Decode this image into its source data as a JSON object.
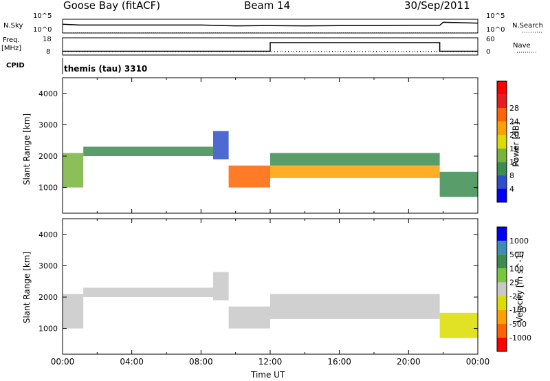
{
  "header": {
    "station": "Goose Bay (fitACF)",
    "beam": "Beam 14",
    "date": "30/Sep/2011"
  },
  "top_panels": {
    "nsky_label": "N.Sky",
    "nsearch_label": "N.Search",
    "noise_ticks": [
      "10^5",
      "10^0"
    ],
    "freq_label": "Freq.",
    "freq_unit": "[MHz]",
    "freq_ticks": [
      "18",
      "8"
    ],
    "nave_label": "Nave",
    "nave_ticks": [
      "60",
      "0"
    ],
    "cpid_label": "CPID",
    "cpid_value": "themis (tau) 3310"
  },
  "colors": {
    "power": [
      "#0000ff",
      "#2f4fc8",
      "#3c8c50",
      "#78b43c",
      "#dcdc00",
      "#ffa000",
      "#ff6400",
      "#e61e1e",
      "#ff0000"
    ],
    "velocity": [
      "#0000ff",
      "#3c8cb4",
      "#3c8c50",
      "#78c83c",
      "#c8c8c8",
      "#dcdc00",
      "#ffa000",
      "#ff6400",
      "#ff0000"
    ]
  },
  "chart_data": [
    {
      "type": "line",
      "title": "N.Sky / N.Search",
      "x": [
        0,
        1,
        4,
        8,
        10,
        12,
        14,
        16,
        18,
        20,
        21.8,
        22,
        24
      ],
      "series": [
        {
          "name": "N.Sky",
          "values": [
            3.2,
            2.9,
            2.9,
            2.9,
            2.6,
            2.7,
            2.6,
            2.7,
            2.7,
            2.8,
            2.8,
            3.9,
            3.6
          ]
        }
      ],
      "xlim": [
        0,
        24
      ],
      "ylim": [
        0,
        5
      ],
      "yscale": "log10"
    },
    {
      "type": "line",
      "title": "Freq. / Nave",
      "x": [
        0,
        12,
        12,
        21.8,
        21.8,
        24
      ],
      "series": [
        {
          "name": "Freq.",
          "values": [
            10.2,
            10.2,
            15.2,
            15.2,
            10.2,
            10.2
          ]
        }
      ],
      "xlim": [
        0,
        24
      ],
      "ylim": [
        8,
        18
      ]
    },
    {
      "type": "heatmap",
      "quantity": "Power",
      "ylabel": "Slant Range [km]",
      "colorbar_label": "Power [dB]",
      "colorbar_ticks": [
        "4",
        "8",
        "12",
        "16",
        "20",
        "24",
        "28"
      ],
      "yticks": [
        "1000",
        "2000",
        "3000",
        "4000"
      ],
      "ylim": [
        180,
        4500
      ],
      "xlim": [
        0,
        24
      ],
      "regions": [
        {
          "t0": 0.0,
          "t1": 1.2,
          "r0": 1000,
          "r1": 2100,
          "v": 14
        },
        {
          "t0": 1.2,
          "t1": 8.7,
          "r0": 2000,
          "r1": 2300,
          "v": 9
        },
        {
          "t0": 8.7,
          "t1": 9.6,
          "r0": 1900,
          "r1": 2800,
          "v": 6
        },
        {
          "t0": 9.6,
          "t1": 12.0,
          "r0": 1000,
          "r1": 1700,
          "v": 22
        },
        {
          "t0": 12.0,
          "t1": 21.8,
          "r0": 1300,
          "r1": 1700,
          "v": 20
        },
        {
          "t0": 12.0,
          "t1": 21.8,
          "r0": 1700,
          "r1": 2100,
          "v": 10
        },
        {
          "t0": 21.8,
          "t1": 24.0,
          "r0": 700,
          "r1": 1500,
          "v": 10
        }
      ]
    },
    {
      "type": "heatmap",
      "quantity": "Velocity",
      "ylabel": "Slant Range [km]",
      "xlabel": "Time UT",
      "colorbar_label": "Velocity [m s^-1]",
      "colorbar_ticks": [
        "1000",
        "500",
        "100",
        "25",
        "-25",
        "-100",
        "-500",
        "-1000"
      ],
      "xticks": [
        "00:00",
        "04:00",
        "08:00",
        "12:00",
        "16:00",
        "20:00",
        "00:00"
      ],
      "yticks": [
        "1000",
        "2000",
        "3000",
        "4000"
      ],
      "ylim": [
        180,
        4500
      ],
      "xlim": [
        0,
        24
      ],
      "regions": [
        {
          "t0": 0.0,
          "t1": 1.2,
          "r0": 1000,
          "r1": 2100,
          "v": 0
        },
        {
          "t0": 1.2,
          "t1": 8.7,
          "r0": 2000,
          "r1": 2300,
          "v": 0
        },
        {
          "t0": 8.7,
          "t1": 9.6,
          "r0": 1900,
          "r1": 2800,
          "v": 0
        },
        {
          "t0": 9.6,
          "t1": 12.0,
          "r0": 1000,
          "r1": 1700,
          "v": 0
        },
        {
          "t0": 12.0,
          "t1": 21.8,
          "r0": 1300,
          "r1": 2100,
          "v": 0
        },
        {
          "t0": 21.8,
          "t1": 24.0,
          "r0": 700,
          "r1": 1500,
          "v": -100
        }
      ]
    }
  ]
}
